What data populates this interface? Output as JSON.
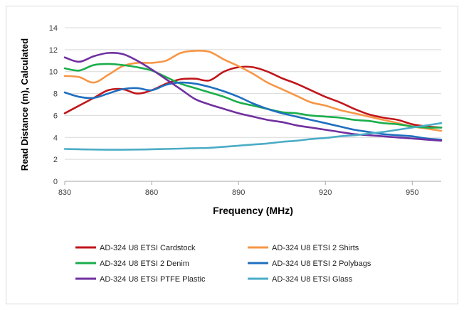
{
  "chart_data": {
    "type": "line",
    "title": "",
    "xlabel": "Frequency (MHz)",
    "ylabel": "Read Distance (m), Calculated",
    "xlim": [
      830,
      960
    ],
    "ylim": [
      0,
      14
    ],
    "x_ticks": [
      830,
      860,
      890,
      920,
      950
    ],
    "y_ticks": [
      0,
      2,
      4,
      6,
      8,
      10,
      12,
      14
    ],
    "grid": "horizontal",
    "legend_position": "bottom",
    "series": [
      {
        "name": "AD-324 U8 ETSI Cardstock",
        "color": "#c0161b",
        "points": [
          [
            830,
            6.2
          ],
          [
            835,
            6.9
          ],
          [
            840,
            7.6
          ],
          [
            845,
            8.3
          ],
          [
            850,
            8.4
          ],
          [
            855,
            8.0
          ],
          [
            860,
            8.3
          ],
          [
            865,
            8.9
          ],
          [
            870,
            9.3
          ],
          [
            875,
            9.35
          ],
          [
            880,
            9.2
          ],
          [
            885,
            10.0
          ],
          [
            890,
            10.4
          ],
          [
            895,
            10.4
          ],
          [
            900,
            10.0
          ],
          [
            905,
            9.4
          ],
          [
            910,
            8.9
          ],
          [
            915,
            8.3
          ],
          [
            920,
            7.7
          ],
          [
            925,
            7.2
          ],
          [
            930,
            6.6
          ],
          [
            935,
            6.1
          ],
          [
            940,
            5.8
          ],
          [
            945,
            5.6
          ],
          [
            950,
            5.2
          ],
          [
            955,
            5.0
          ],
          [
            960,
            4.9
          ]
        ]
      },
      {
        "name": "AD-324 U8 ETSI 2 Shirts",
        "color": "#f79646",
        "points": [
          [
            830,
            9.6
          ],
          [
            835,
            9.5
          ],
          [
            840,
            9.0
          ],
          [
            845,
            9.7
          ],
          [
            850,
            10.5
          ],
          [
            855,
            10.8
          ],
          [
            860,
            10.8
          ],
          [
            865,
            11.0
          ],
          [
            870,
            11.7
          ],
          [
            875,
            11.9
          ],
          [
            880,
            11.8
          ],
          [
            885,
            11.1
          ],
          [
            890,
            10.5
          ],
          [
            895,
            9.8
          ],
          [
            900,
            9.0
          ],
          [
            905,
            8.4
          ],
          [
            910,
            7.8
          ],
          [
            915,
            7.2
          ],
          [
            920,
            6.9
          ],
          [
            925,
            6.5
          ],
          [
            930,
            6.2
          ],
          [
            935,
            5.9
          ],
          [
            940,
            5.6
          ],
          [
            945,
            5.3
          ],
          [
            950,
            5.0
          ],
          [
            955,
            4.8
          ],
          [
            960,
            4.6
          ]
        ]
      },
      {
        "name": "AD-324 U8 ETSI 2 Denim",
        "color": "#1aae4c",
        "points": [
          [
            830,
            10.3
          ],
          [
            835,
            10.1
          ],
          [
            840,
            10.6
          ],
          [
            845,
            10.7
          ],
          [
            850,
            10.6
          ],
          [
            855,
            10.4
          ],
          [
            860,
            10.1
          ],
          [
            865,
            9.5
          ],
          [
            870,
            8.9
          ],
          [
            875,
            8.5
          ],
          [
            880,
            8.1
          ],
          [
            885,
            7.7
          ],
          [
            890,
            7.2
          ],
          [
            895,
            6.9
          ],
          [
            900,
            6.6
          ],
          [
            905,
            6.3
          ],
          [
            910,
            6.2
          ],
          [
            915,
            6.0
          ],
          [
            920,
            5.9
          ],
          [
            925,
            5.8
          ],
          [
            930,
            5.6
          ],
          [
            935,
            5.5
          ],
          [
            940,
            5.3
          ],
          [
            945,
            5.2
          ],
          [
            950,
            5.0
          ],
          [
            955,
            4.9
          ],
          [
            960,
            4.9
          ]
        ]
      },
      {
        "name": "AD-324 U8 ETSI 2 Polybags",
        "color": "#1f6fc0",
        "points": [
          [
            830,
            8.1
          ],
          [
            835,
            7.7
          ],
          [
            840,
            7.6
          ],
          [
            845,
            8.0
          ],
          [
            850,
            8.4
          ],
          [
            855,
            8.5
          ],
          [
            860,
            8.3
          ],
          [
            865,
            8.8
          ],
          [
            870,
            9.0
          ],
          [
            875,
            8.9
          ],
          [
            880,
            8.6
          ],
          [
            885,
            8.2
          ],
          [
            890,
            7.7
          ],
          [
            895,
            7.1
          ],
          [
            900,
            6.6
          ],
          [
            905,
            6.2
          ],
          [
            910,
            5.9
          ],
          [
            915,
            5.6
          ],
          [
            920,
            5.3
          ],
          [
            925,
            5.0
          ],
          [
            930,
            4.7
          ],
          [
            935,
            4.5
          ],
          [
            940,
            4.3
          ],
          [
            945,
            4.2
          ],
          [
            950,
            4.1
          ],
          [
            955,
            3.9
          ],
          [
            960,
            3.8
          ]
        ]
      },
      {
        "name": "AD-324 U8 ETSI PTFE Plastic",
        "color": "#7030a0",
        "points": [
          [
            830,
            11.3
          ],
          [
            835,
            10.9
          ],
          [
            840,
            11.4
          ],
          [
            845,
            11.7
          ],
          [
            850,
            11.6
          ],
          [
            855,
            11.0
          ],
          [
            860,
            10.2
          ],
          [
            865,
            9.3
          ],
          [
            870,
            8.4
          ],
          [
            875,
            7.5
          ],
          [
            880,
            7.0
          ],
          [
            885,
            6.6
          ],
          [
            890,
            6.2
          ],
          [
            895,
            5.9
          ],
          [
            900,
            5.6
          ],
          [
            905,
            5.4
          ],
          [
            910,
            5.1
          ],
          [
            915,
            4.9
          ],
          [
            920,
            4.7
          ],
          [
            925,
            4.5
          ],
          [
            930,
            4.3
          ],
          [
            935,
            4.2
          ],
          [
            940,
            4.1
          ],
          [
            945,
            4.0
          ],
          [
            950,
            3.9
          ],
          [
            955,
            3.8
          ],
          [
            960,
            3.7
          ]
        ]
      },
      {
        "name": "AD-324 U8 ETSI Glass",
        "color": "#4bacc6",
        "points": [
          [
            830,
            2.95
          ],
          [
            835,
            2.92
          ],
          [
            840,
            2.9
          ],
          [
            845,
            2.88
          ],
          [
            850,
            2.88
          ],
          [
            855,
            2.9
          ],
          [
            860,
            2.92
          ],
          [
            865,
            2.95
          ],
          [
            870,
            2.98
          ],
          [
            875,
            3.02
          ],
          [
            880,
            3.05
          ],
          [
            885,
            3.15
          ],
          [
            890,
            3.25
          ],
          [
            895,
            3.35
          ],
          [
            900,
            3.45
          ],
          [
            905,
            3.6
          ],
          [
            910,
            3.7
          ],
          [
            915,
            3.85
          ],
          [
            920,
            3.95
          ],
          [
            925,
            4.1
          ],
          [
            930,
            4.2
          ],
          [
            935,
            4.35
          ],
          [
            940,
            4.5
          ],
          [
            945,
            4.7
          ],
          [
            950,
            4.9
          ],
          [
            955,
            5.1
          ],
          [
            960,
            5.3
          ]
        ]
      }
    ]
  }
}
